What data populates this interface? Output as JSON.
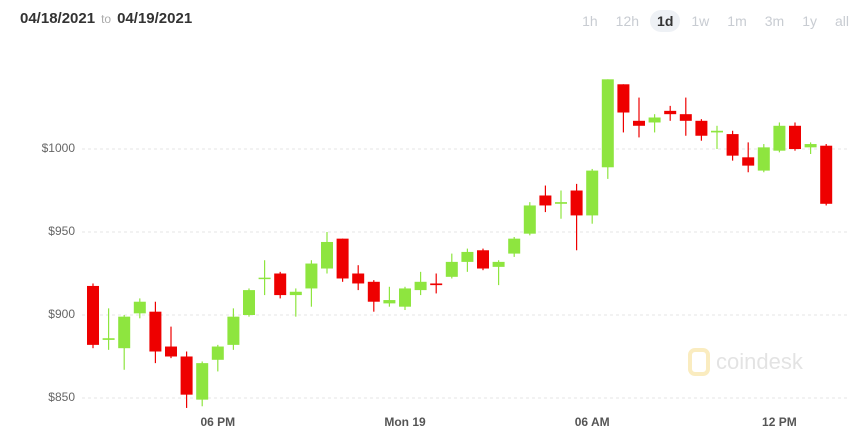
{
  "header": {
    "from": "04/18/2021",
    "to_word": "to",
    "to": "04/19/2021",
    "ranges": [
      "1h",
      "12h",
      "1d",
      "1w",
      "1m",
      "3m",
      "1y",
      "all"
    ],
    "selected_range": "1d"
  },
  "watermark": "coindesk",
  "chart_data": {
    "type": "candlestick",
    "categories": [
      null,
      null,
      null,
      null,
      null,
      null,
      null,
      null,
      "06 PM",
      null,
      null,
      null,
      null,
      null,
      null,
      null,
      null,
      null,
      null,
      null,
      "Mon 19",
      null,
      null,
      null,
      null,
      null,
      null,
      null,
      null,
      null,
      null,
      null,
      "06 AM",
      null,
      null,
      null,
      null,
      null,
      null,
      null,
      null,
      null,
      null,
      null,
      "12 PM",
      null,
      null,
      null
    ],
    "open": [
      917.5,
      885,
      880,
      901,
      902,
      881,
      875,
      849,
      873,
      882,
      900,
      922,
      925,
      912,
      916,
      928,
      946,
      925,
      920,
      907,
      905,
      915,
      919,
      923,
      932,
      939,
      929,
      937,
      949,
      972,
      967,
      975,
      960,
      989,
      1039,
      1017,
      1016,
      1023,
      1021,
      1017,
      1010,
      1009,
      995,
      987,
      999,
      1014,
      1001,
      1002
    ],
    "high": [
      919,
      904,
      900,
      910,
      908,
      893,
      878,
      872,
      882,
      904,
      916,
      933,
      926,
      916,
      933,
      950,
      946,
      930,
      921,
      917,
      917,
      926,
      925,
      937,
      940,
      940,
      933,
      947,
      968,
      978,
      975,
      979,
      988,
      1042,
      1039,
      1031,
      1021,
      1026,
      1031,
      1018,
      1014,
      1011,
      1004,
      1003,
      1016,
      1016,
      1004,
      1003
    ],
    "low": [
      880,
      879,
      867,
      898,
      871,
      874,
      844,
      845,
      866,
      879,
      899,
      912,
      910,
      899,
      905,
      925,
      920,
      915,
      902,
      905,
      903,
      912,
      913,
      922,
      926,
      927,
      918,
      935,
      948,
      962,
      958,
      939,
      955,
      982,
      1010,
      1007,
      1010,
      1017,
      1008,
      1005,
      1000,
      993,
      986,
      986,
      998,
      999,
      997,
      966
    ],
    "close": [
      882,
      886,
      899,
      908,
      878,
      875,
      852,
      871,
      881,
      899,
      915,
      922.5,
      912,
      914,
      931,
      944,
      922,
      919,
      908,
      909,
      916,
      920,
      918,
      932,
      938,
      928,
      932,
      946,
      966,
      966,
      968,
      960,
      987,
      1042,
      1022,
      1014,
      1019,
      1021,
      1017,
      1008,
      1011,
      996,
      990,
      1001,
      1014,
      1000,
      1003,
      967
    ],
    "up_color": "#8ee53f",
    "down_color": "#ee0000",
    "ylim": [
      843,
      1054
    ],
    "yticks": [
      {
        "value": 850,
        "label": "$850"
      },
      {
        "value": 900,
        "label": "$900"
      },
      {
        "value": 950,
        "label": "$950"
      },
      {
        "value": 1000,
        "label": "$1000"
      }
    ],
    "grid": true
  }
}
